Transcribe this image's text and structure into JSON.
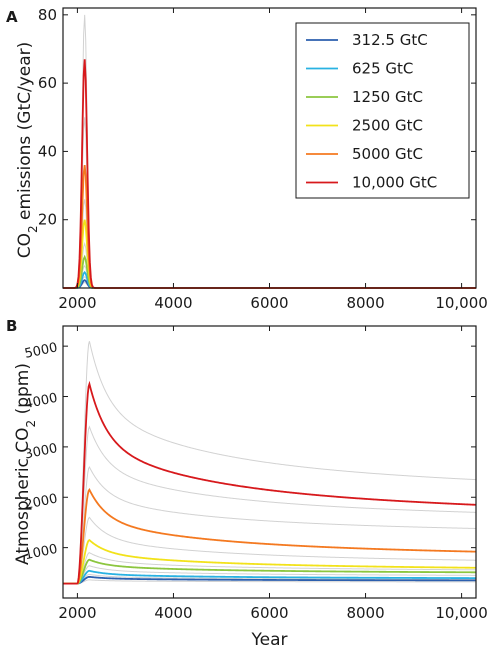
{
  "chart_data": [
    {
      "panel": "A",
      "type": "line",
      "ylabel": "CO2 emissions (GtC/year)",
      "ylabel_main": "CO",
      "ylabel_sub": "2",
      "ylabel_rest": " emissions (GtC/year)",
      "xlim": [
        1700,
        10300
      ],
      "ylim": [
        0,
        82
      ],
      "xticks": [
        2000,
        4000,
        6000,
        8000,
        10000
      ],
      "xtick_labels": [
        "2000",
        "4000",
        "6000",
        "8000",
        "10,000"
      ],
      "yticks": [
        20,
        40,
        60,
        80
      ],
      "ytick_labels": [
        "20",
        "40",
        "60",
        "80"
      ],
      "legend_position": "top-right",
      "peak_year": 2150,
      "series": [
        {
          "name": "312.5 GtC",
          "color": "#2c5fae",
          "peak": 2.3,
          "width": 70
        },
        {
          "name": "625 GtC",
          "color": "#29b2e2",
          "peak": 4.6,
          "width": 70
        },
        {
          "name": "1250 GtC",
          "color": "#8cc63f",
          "peak": 9.1,
          "width": 70
        },
        {
          "name": "2500 GtC",
          "color": "#f2e21a",
          "peak": 20,
          "width": 70
        },
        {
          "name": "5000 GtC",
          "color": "#f47920",
          "peak": 36,
          "width": 70
        },
        {
          "name": "10,000 GtC",
          "color": "#d7191c",
          "peak": 67,
          "width": 70
        }
      ],
      "grey_series_peaks": [
        1.6,
        3.3,
        6.5,
        13,
        26,
        50,
        80
      ]
    },
    {
      "panel": "B",
      "type": "line",
      "xlabel": "Year",
      "ylabel": "Atmospheric CO2 (ppm)",
      "ylabel_main": "Atmospheric CO",
      "ylabel_sub": "2",
      "ylabel_rest": " (ppm)",
      "xlim": [
        1700,
        10300
      ],
      "ylim": [
        0,
        5400
      ],
      "xticks": [
        2000,
        4000,
        6000,
        8000,
        10000
      ],
      "xtick_labels": [
        "2000",
        "4000",
        "6000",
        "8000",
        "10,000"
      ],
      "yticks": [
        1000,
        2000,
        3000,
        4000,
        5000
      ],
      "ytick_labels": [
        "1000",
        "2000",
        "3000",
        "4000",
        "5000"
      ],
      "baseline": 285,
      "series": [
        {
          "name": "312.5 GtC",
          "color": "#2c5fae",
          "peak": 420,
          "end": 350
        },
        {
          "name": "625 GtC",
          "color": "#29b2e2",
          "peak": 540,
          "end": 395
        },
        {
          "name": "1250 GtC",
          "color": "#8cc63f",
          "peak": 760,
          "end": 510
        },
        {
          "name": "2500 GtC",
          "color": "#f2e21a",
          "peak": 1150,
          "end": 600
        },
        {
          "name": "5000 GtC",
          "color": "#f47920",
          "peak": 2150,
          "end": 920
        },
        {
          "name": "10,000 GtC",
          "color": "#d7191c",
          "peak": 4250,
          "end": 1850
        }
      ],
      "grey_series": [
        {
          "peak": 360,
          "end": 320
        },
        {
          "peak": 470,
          "end": 370
        },
        {
          "peak": 640,
          "end": 450
        },
        {
          "peak": 900,
          "end": 560
        },
        {
          "peak": 1600,
          "end": 750
        },
        {
          "peak": 2600,
          "end": 1380
        },
        {
          "peak": 3400,
          "end": 1700
        },
        {
          "peak": 5100,
          "end": 2350
        }
      ]
    }
  ]
}
